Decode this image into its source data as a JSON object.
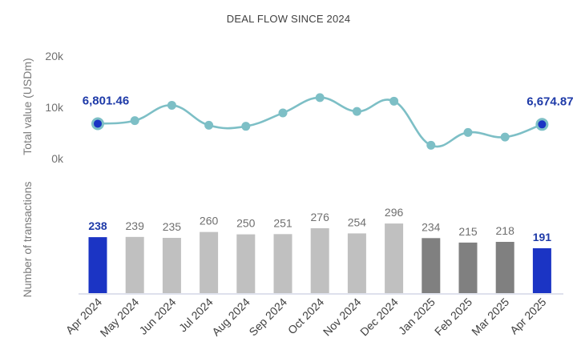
{
  "title": "DEAL FLOW SINCE 2024",
  "colors": {
    "highlight": "#1b34c4",
    "bar_2024": "#c0c0c0",
    "bar_2025": "#808080",
    "line": "#7dbfc6",
    "marker": "#7dbfc6",
    "marker_highlight": "#1b34c4",
    "axis": "#c9cfe0"
  },
  "chart_data": [
    {
      "type": "line",
      "ylabel": "Total value (USDm)",
      "y_ticks": [
        "20k",
        "10k",
        "0k"
      ],
      "y_tick_values": [
        20000,
        10000,
        0
      ],
      "ylim": [
        0,
        20000
      ],
      "grid": false,
      "x": [
        "Apr 2024",
        "May 2024",
        "Jun 2024",
        "Jul 2024",
        "Aug 2024",
        "Sep 2024",
        "Oct 2024",
        "Nov 2024",
        "Dec 2024",
        "Jan 2025",
        "Feb 2025",
        "Mar 2025",
        "Apr 2025"
      ],
      "values": [
        6801.46,
        7400,
        10400,
        6500,
        6300,
        8900,
        11900,
        9200,
        11200,
        2600,
        5100,
        4200,
        6674.87
      ],
      "highlighted_points": [
        0,
        12
      ],
      "data_labels": [
        {
          "index": 0,
          "text": "6,801.46"
        },
        {
          "index": 12,
          "text": "6,674.87"
        }
      ]
    },
    {
      "type": "bar",
      "ylabel": "Number of transactions",
      "categories": [
        "Apr 2024",
        "May 2024",
        "Jun 2024",
        "Jul 2024",
        "Aug 2024",
        "Sep 2024",
        "Oct 2024",
        "Nov 2024",
        "Dec 2024",
        "Jan 2025",
        "Feb 2025",
        "Mar 2025",
        "Apr 2025"
      ],
      "values": [
        238,
        239,
        235,
        260,
        250,
        251,
        276,
        254,
        296,
        234,
        215,
        218,
        191
      ],
      "ylim": [
        0,
        400
      ],
      "bar_colors": [
        "#1b34c4",
        "#c0c0c0",
        "#c0c0c0",
        "#c0c0c0",
        "#c0c0c0",
        "#c0c0c0",
        "#c0c0c0",
        "#c0c0c0",
        "#c0c0c0",
        "#808080",
        "#808080",
        "#808080",
        "#1b34c4"
      ],
      "highlighted_bars": [
        0,
        12
      ],
      "grid": false
    }
  ]
}
